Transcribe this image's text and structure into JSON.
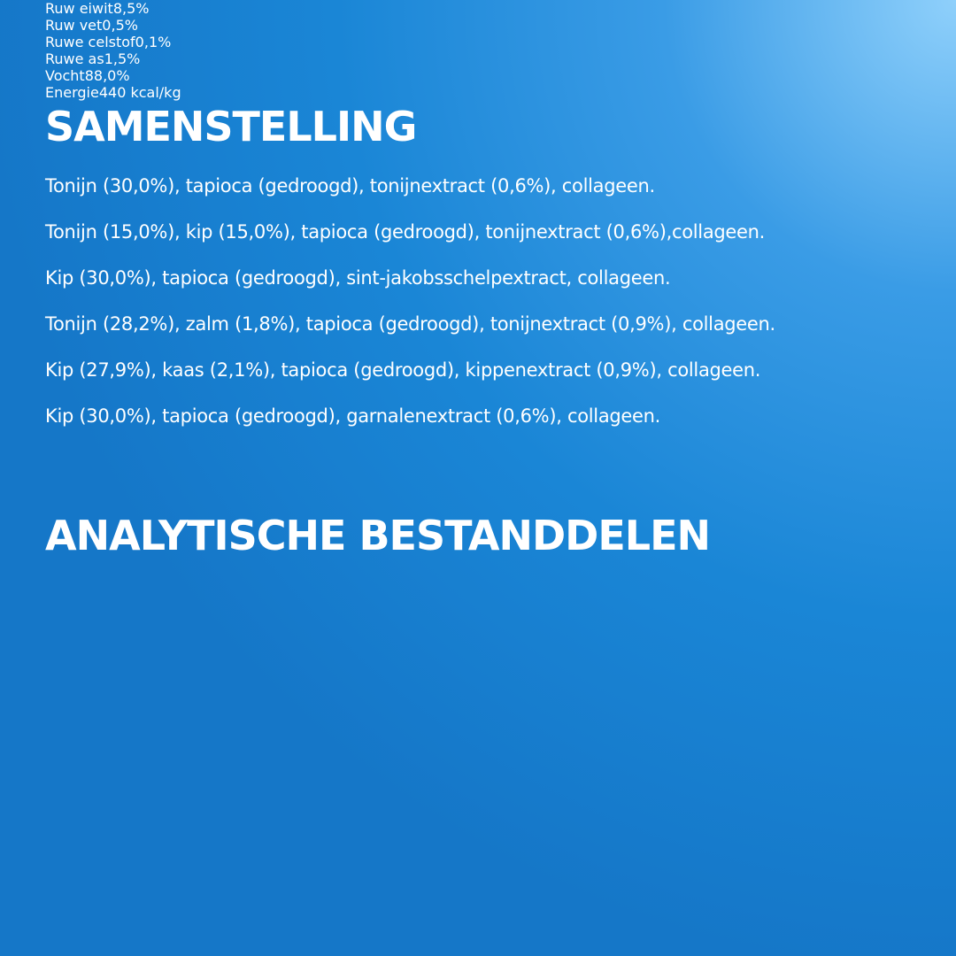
{
  "composition": {
    "title": "SAMENSTELLING",
    "lines": [
      "Tonijn (30,0%), tapioca (gedroogd), tonijnextract (0,6%), collageen.",
      "Tonijn (15,0%), kip (15,0%), tapioca (gedroogd), tonijnextract (0,6%),collageen.",
      "Kip (30,0%), tapioca (gedroogd), sint-jakobsschelpextract, collageen.",
      "Tonijn (28,2%), zalm (1,8%), tapioca (gedroogd), tonijnextract (0,9%), collageen.",
      "Kip (27,9%), kaas (2,1%), tapioca (gedroogd), kippenextract (0,9%), collageen.",
      "Kip (30,0%), tapioca (gedroogd), garnalenextract (0,6%), collageen."
    ]
  },
  "analysis": {
    "title": "ANALYTISCHE BESTANDDELEN",
    "rows": [
      [
        "Ruw eiwit",
        "8,5%"
      ],
      [
        "Ruw vet",
        "0,5%"
      ],
      [
        "Ruwe celstof",
        "0,1%"
      ],
      [
        "Ruwe as",
        "1,5%"
      ],
      [
        "Vocht",
        "88,0%"
      ],
      [
        "Energie",
        "440 kcal/kg"
      ]
    ]
  }
}
